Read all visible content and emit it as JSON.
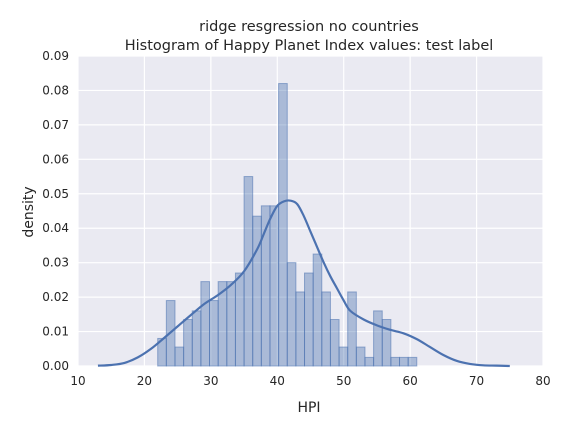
{
  "chart_data": {
    "type": "bar",
    "title_line1": "ridge resgression no countries",
    "title_line2": "Histogram of Happy Planet Index values: test label",
    "xlabel": "HPI",
    "ylabel": "density",
    "xlim": [
      10,
      80
    ],
    "ylim": [
      0,
      0.09
    ],
    "xticks": [
      "10",
      "20",
      "30",
      "40",
      "50",
      "60",
      "70",
      "80"
    ],
    "yticks": [
      "0.00",
      "0.01",
      "0.02",
      "0.03",
      "0.04",
      "0.05",
      "0.06",
      "0.07",
      "0.08",
      "0.09"
    ],
    "grid": true,
    "bins": [
      {
        "x0": 22.0,
        "x1": 23.3,
        "density": 0.008
      },
      {
        "x0": 23.3,
        "x1": 24.6,
        "density": 0.019
      },
      {
        "x0": 24.6,
        "x1": 25.9,
        "density": 0.0055
      },
      {
        "x0": 25.9,
        "x1": 27.2,
        "density": 0.0135
      },
      {
        "x0": 27.2,
        "x1": 28.5,
        "density": 0.016
      },
      {
        "x0": 28.5,
        "x1": 29.8,
        "density": 0.0245
      },
      {
        "x0": 29.8,
        "x1": 31.1,
        "density": 0.019
      },
      {
        "x0": 31.1,
        "x1": 32.4,
        "density": 0.0245
      },
      {
        "x0": 32.4,
        "x1": 33.7,
        "density": 0.0245
      },
      {
        "x0": 33.7,
        "x1": 35.0,
        "density": 0.027
      },
      {
        "x0": 35.0,
        "x1": 36.3,
        "density": 0.055
      },
      {
        "x0": 36.3,
        "x1": 37.6,
        "density": 0.0435
      },
      {
        "x0": 37.6,
        "x1": 38.9,
        "density": 0.0465
      },
      {
        "x0": 38.9,
        "x1": 40.2,
        "density": 0.0465
      },
      {
        "x0": 40.2,
        "x1": 41.5,
        "density": 0.082
      },
      {
        "x0": 41.5,
        "x1": 42.8,
        "density": 0.03
      },
      {
        "x0": 42.8,
        "x1": 44.1,
        "density": 0.0215
      },
      {
        "x0": 44.1,
        "x1": 45.4,
        "density": 0.027
      },
      {
        "x0": 45.4,
        "x1": 46.7,
        "density": 0.0325
      },
      {
        "x0": 46.7,
        "x1": 48.0,
        "density": 0.0215
      },
      {
        "x0": 48.0,
        "x1": 49.3,
        "density": 0.0135
      },
      {
        "x0": 49.3,
        "x1": 50.6,
        "density": 0.0055
      },
      {
        "x0": 50.6,
        "x1": 51.9,
        "density": 0.0215
      },
      {
        "x0": 51.9,
        "x1": 53.2,
        "density": 0.0055
      },
      {
        "x0": 53.2,
        "x1": 54.5,
        "density": 0.0025
      },
      {
        "x0": 54.5,
        "x1": 55.8,
        "density": 0.016
      },
      {
        "x0": 55.8,
        "x1": 57.1,
        "density": 0.0135
      },
      {
        "x0": 57.1,
        "x1": 58.4,
        "density": 0.0025
      },
      {
        "x0": 58.4,
        "x1": 59.7,
        "density": 0.0025
      },
      {
        "x0": 59.7,
        "x1": 61.0,
        "density": 0.0025
      }
    ],
    "kde": {
      "x": [
        13,
        15,
        17,
        19,
        21,
        23,
        25,
        27,
        29,
        31,
        33,
        35,
        37,
        38,
        39,
        40,
        41,
        42,
        43,
        44,
        45,
        46,
        47,
        48,
        49,
        50,
        51,
        53,
        55,
        57,
        59,
        61,
        63,
        65,
        67,
        69,
        71,
        73,
        75
      ],
      "y": [
        0.0001,
        0.0003,
        0.0009,
        0.0025,
        0.005,
        0.0082,
        0.0115,
        0.0148,
        0.018,
        0.0205,
        0.0235,
        0.0275,
        0.034,
        0.0385,
        0.043,
        0.0465,
        0.0478,
        0.048,
        0.047,
        0.0435,
        0.039,
        0.0345,
        0.03,
        0.026,
        0.0225,
        0.019,
        0.016,
        0.0135,
        0.0118,
        0.0105,
        0.0095,
        0.0078,
        0.0055,
        0.0032,
        0.0015,
        0.0006,
        0.0002,
        0.0001,
        0.0
      ]
    },
    "colors": {
      "plot_background": "#EAEAF2",
      "grid": "#FFFFFF",
      "bar_fill": "#4C72B0",
      "kde_line": "#4C72B0"
    }
  }
}
